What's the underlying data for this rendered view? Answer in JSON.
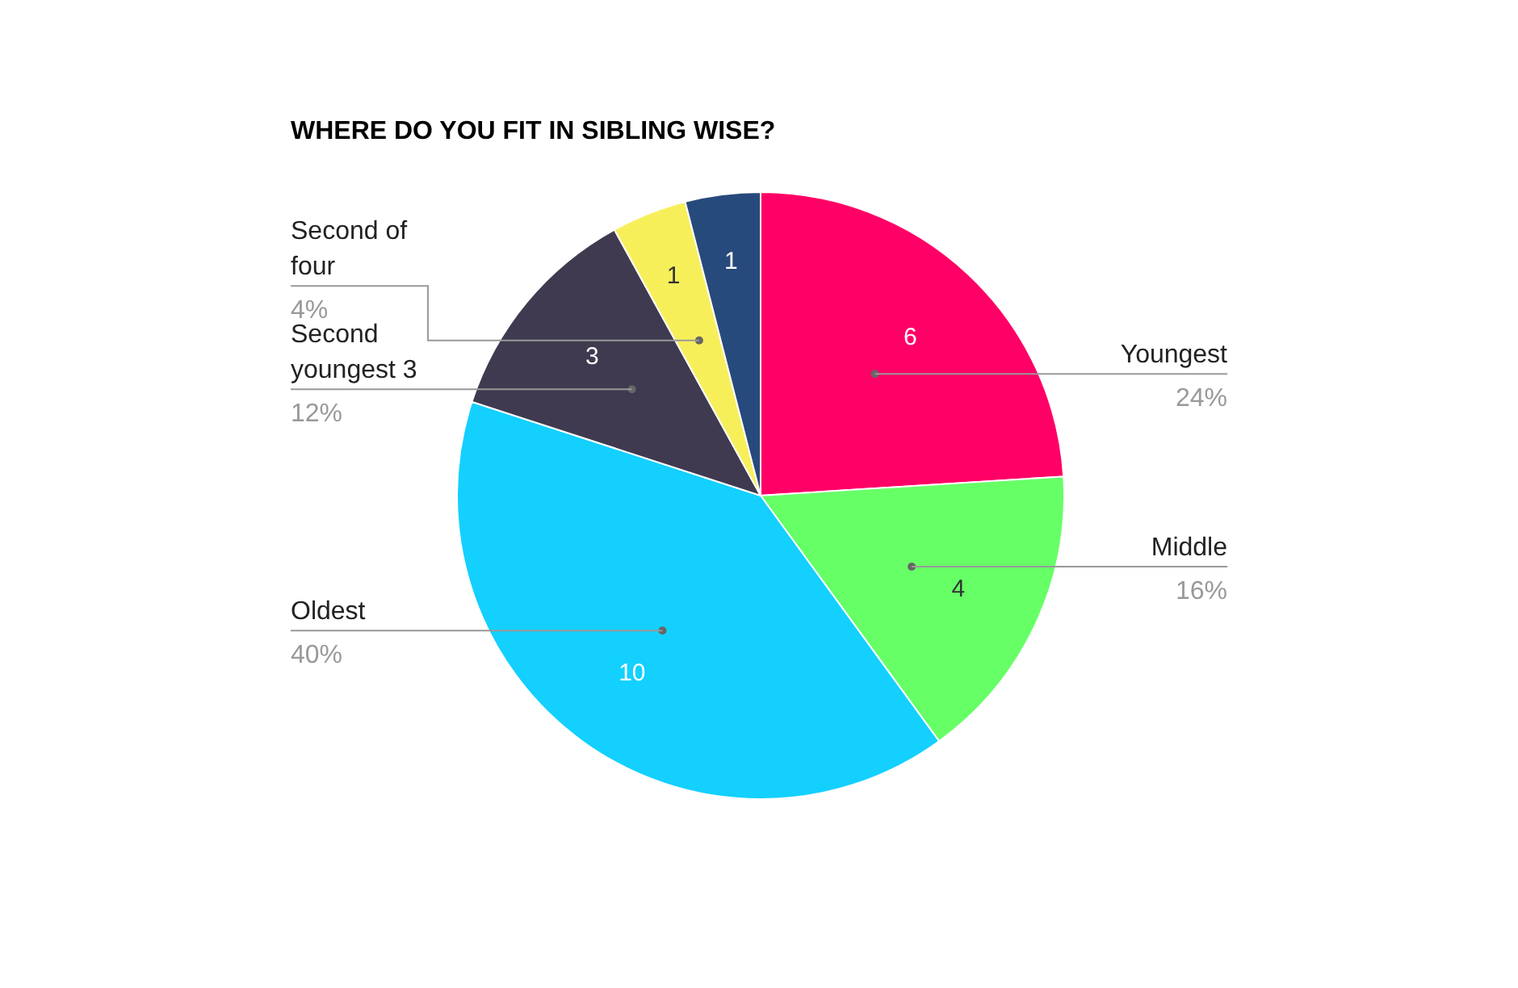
{
  "chart_data": {
    "type": "pie",
    "title": "WHERE DO YOU FIT IN SIBLING WISE?",
    "categories": [
      "Youngest",
      "Middle",
      "Oldest",
      "Second youngest 3",
      "Second of four",
      null
    ],
    "values": [
      6,
      4,
      10,
      3,
      1,
      1
    ],
    "colors": [
      "#ff0066",
      "#66ff66",
      "#13d0ff",
      "#3f3a4f",
      "#f7ef5a",
      "#274a7c"
    ],
    "data_labels": true,
    "annotations": [
      "24%",
      "16%",
      "40%",
      "12%",
      "4%"
    ]
  }
}
